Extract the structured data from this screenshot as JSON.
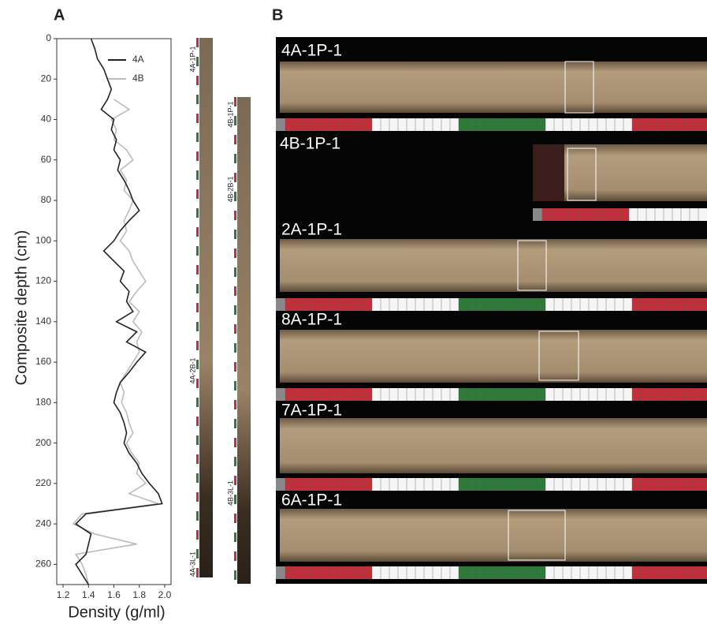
{
  "panel_a": "A",
  "panel_b": "B",
  "chart_data": {
    "type": "line",
    "depth_axis": "vertical",
    "xlabel": "Composite depth (cm)",
    "ylabel": "Density (g/ml)",
    "x": [
      0,
      5,
      10,
      15,
      20,
      25,
      30,
      35,
      40,
      45,
      50,
      55,
      60,
      65,
      70,
      75,
      80,
      85,
      90,
      95,
      100,
      105,
      110,
      115,
      120,
      125,
      130,
      135,
      140,
      145,
      150,
      155,
      160,
      165,
      170,
      175,
      180,
      185,
      190,
      195,
      200,
      205,
      210,
      215,
      220,
      225,
      230,
      235,
      240,
      245,
      250,
      255,
      260,
      265,
      270
    ],
    "xlim": [
      0,
      270
    ],
    "xticks": [
      0,
      20,
      40,
      60,
      80,
      100,
      120,
      140,
      160,
      180,
      200,
      220,
      240,
      260
    ],
    "ylim": [
      1.15,
      2.05
    ],
    "yticks": [
      1.2,
      1.4,
      1.6,
      1.8,
      {
        "value": 2.0,
        "label": "2.0"
      }
    ],
    "series": [
      {
        "name": "4A",
        "color": "#222222",
        "values": [
          1.42,
          1.45,
          1.47,
          1.52,
          1.55,
          1.58,
          1.55,
          1.5,
          1.6,
          1.58,
          1.62,
          1.6,
          1.65,
          1.63,
          1.68,
          1.72,
          1.75,
          1.8,
          1.72,
          1.65,
          1.6,
          1.52,
          1.6,
          1.68,
          1.65,
          1.72,
          1.7,
          1.75,
          1.62,
          1.78,
          1.7,
          1.85,
          1.78,
          1.72,
          1.65,
          1.62,
          1.6,
          1.65,
          1.68,
          1.7,
          1.68,
          1.72,
          1.78,
          1.82,
          1.88,
          1.95,
          1.98,
          1.38,
          1.3,
          1.42,
          1.4,
          1.38,
          1.3,
          1.35,
          1.4
        ]
      },
      {
        "name": "4B",
        "color": "#bbbbbb",
        "values": [
          null,
          null,
          null,
          null,
          null,
          null,
          1.6,
          1.72,
          1.58,
          1.62,
          1.6,
          1.7,
          1.75,
          1.65,
          1.7,
          1.68,
          1.75,
          1.72,
          1.68,
          1.7,
          1.65,
          1.72,
          1.75,
          1.8,
          1.85,
          1.78,
          1.72,
          1.8,
          1.75,
          1.82,
          1.78,
          1.8,
          1.75,
          1.7,
          1.65,
          1.68,
          1.66,
          1.7,
          1.72,
          1.75,
          1.7,
          1.74,
          1.8,
          1.78,
          1.85,
          1.72,
          1.95,
          1.35,
          1.28,
          1.45,
          1.78,
          1.3,
          1.35,
          1.38,
          1.4
        ]
      }
    ]
  },
  "strip_labels": {
    "a": [
      "4A-1P-1",
      "4A-2B-1",
      "4A-3L-1"
    ],
    "b": [
      "4B-1P-1",
      "4B-2B-1",
      "4B-3L-1"
    ]
  },
  "cores": [
    "4A-1P-1",
    "4B-1P-1",
    "2A-1P-1",
    "8A-1P-1",
    "7A-1P-1",
    "6A-1P-1"
  ]
}
